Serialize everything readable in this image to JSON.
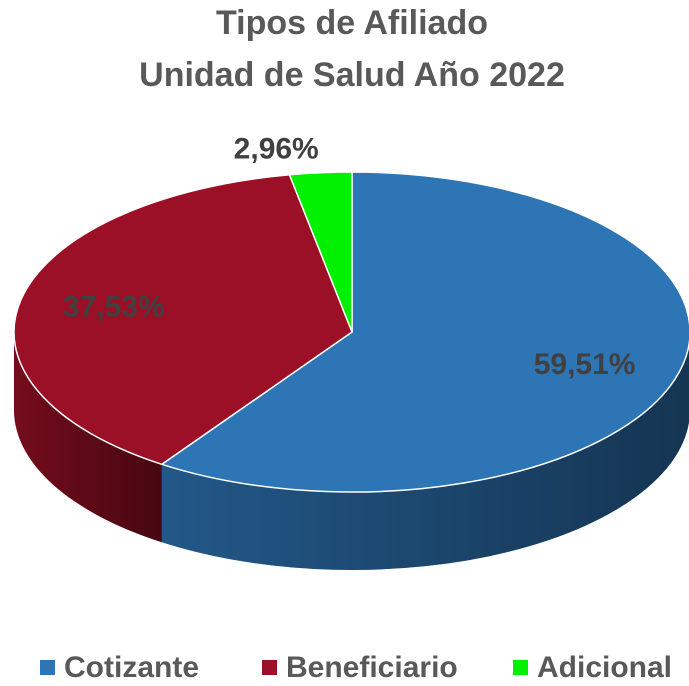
{
  "chart_data": {
    "type": "pie",
    "title": "Tipos de Afiliado",
    "subtitle": "Unidad de Salud Año 2022",
    "categories": [
      "Cotizante",
      "Beneficiario",
      "Adicional"
    ],
    "values": [
      59.51,
      37.53,
      2.96
    ],
    "value_labels": [
      "59,51%",
      "37,53%",
      "2,96%"
    ],
    "colors": [
      "#2e75b6",
      "#9b1026",
      "#00f000"
    ],
    "legend": "bottom"
  }
}
